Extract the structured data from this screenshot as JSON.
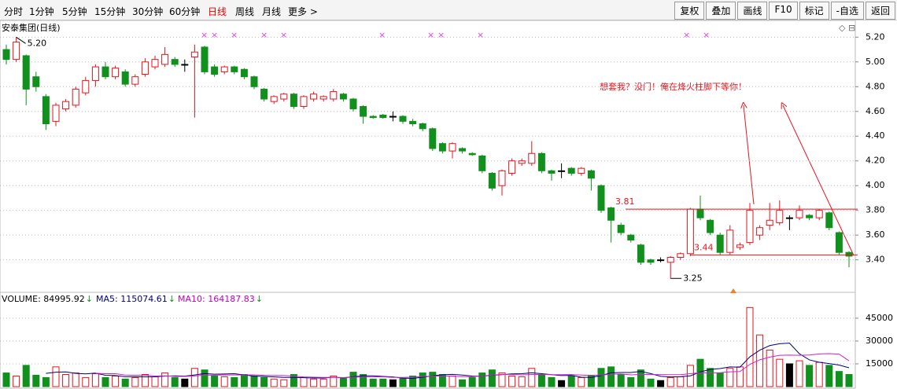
{
  "toolbar": {
    "periods": [
      "分时",
      "1分钟",
      "5分钟",
      "15分钟",
      "30分钟",
      "60分钟",
      "日线",
      "周线",
      "月线",
      "更多 >"
    ],
    "buttons": [
      "复权",
      "叠加",
      "画线",
      "F10",
      "标记",
      "-自选",
      "返回"
    ]
  },
  "chart_data": {
    "type": "candlestick",
    "title": "安泰集团(日线)",
    "open": [
      5.1,
      5.02,
      5.05,
      4.88,
      4.72,
      4.52,
      4.62,
      4.65,
      4.75,
      4.85,
      4.96,
      4.88,
      4.92,
      4.82,
      4.9,
      4.96,
      4.98,
      5.02,
      4.98,
      5.04,
      5.12,
      4.96,
      4.92,
      4.96,
      4.94,
      4.88,
      4.78,
      4.68,
      4.7,
      4.74,
      4.64,
      4.7,
      4.7,
      4.7,
      4.74,
      4.7,
      4.64,
      4.56,
      4.57,
      4.56,
      4.56,
      4.52,
      4.5,
      4.46,
      4.34,
      4.28,
      4.3,
      4.26,
      4.24,
      4.1,
      4.0,
      4.1,
      4.18,
      4.18,
      4.26,
      4.12,
      4.12,
      4.14,
      4.1,
      4.12,
      4.0,
      3.82,
      3.68,
      3.6,
      3.52,
      3.4,
      3.4,
      3.38,
      3.42,
      3.45,
      3.81,
      3.72,
      3.6,
      3.46,
      3.5,
      3.54,
      3.6,
      3.68,
      3.7,
      3.74,
      3.74,
      3.76,
      3.74,
      3.78,
      3.62,
      3.46
    ],
    "high": [
      5.14,
      5.2,
      5.06,
      4.92,
      4.74,
      4.67,
      4.7,
      4.8,
      4.88,
      4.98,
      5.0,
      4.97,
      4.94,
      4.9,
      5.03,
      5.05,
      5.12,
      5.04,
      5.02,
      5.14,
      5.13,
      4.98,
      4.97,
      4.97,
      4.95,
      4.89,
      4.79,
      4.73,
      4.75,
      4.75,
      4.73,
      4.76,
      4.73,
      4.78,
      4.75,
      4.71,
      4.65,
      4.57,
      4.58,
      4.6,
      4.57,
      4.54,
      4.51,
      4.47,
      4.35,
      4.35,
      4.31,
      4.27,
      4.25,
      4.11,
      4.13,
      4.22,
      4.22,
      4.36,
      4.27,
      4.13,
      4.18,
      4.15,
      4.15,
      4.13,
      4.01,
      3.83,
      3.7,
      3.61,
      3.53,
      3.41,
      3.42,
      3.43,
      3.46,
      3.82,
      3.92,
      3.73,
      3.62,
      3.68,
      3.54,
      3.86,
      3.68,
      3.86,
      3.88,
      3.76,
      3.84,
      3.77,
      3.81,
      3.79,
      3.63,
      3.47
    ],
    "low": [
      4.98,
      5.0,
      4.65,
      4.76,
      4.45,
      4.48,
      4.6,
      4.63,
      4.73,
      4.8,
      4.86,
      4.86,
      4.8,
      4.8,
      4.88,
      4.94,
      4.96,
      4.96,
      4.92,
      4.55,
      4.9,
      4.88,
      4.9,
      4.9,
      4.86,
      4.78,
      4.68,
      4.66,
      4.68,
      4.62,
      4.62,
      4.68,
      4.68,
      4.68,
      4.68,
      4.6,
      4.5,
      4.54,
      4.54,
      4.52,
      4.5,
      4.48,
      4.44,
      4.28,
      4.26,
      4.22,
      4.26,
      4.24,
      4.1,
      3.96,
      3.92,
      4.08,
      4.16,
      4.16,
      4.1,
      4.04,
      4.06,
      4.08,
      4.08,
      3.96,
      3.78,
      3.54,
      3.6,
      3.54,
      3.36,
      3.36,
      3.38,
      3.25,
      3.4,
      3.43,
      3.72,
      3.6,
      3.44,
      3.44,
      3.48,
      3.52,
      3.56,
      3.64,
      3.68,
      3.64,
      3.72,
      3.72,
      3.72,
      3.64,
      3.44,
      3.34
    ],
    "close": [
      5.02,
      5.16,
      4.78,
      4.8,
      4.5,
      4.65,
      4.68,
      4.78,
      4.85,
      4.96,
      4.88,
      4.95,
      4.82,
      4.88,
      5.0,
      5.02,
      5.06,
      4.98,
      4.98,
      5.08,
      4.92,
      4.9,
      4.96,
      4.92,
      4.88,
      4.8,
      4.7,
      4.72,
      4.74,
      4.64,
      4.72,
      4.74,
      4.72,
      4.76,
      4.7,
      4.62,
      4.56,
      4.55,
      4.55,
      4.56,
      4.52,
      4.5,
      4.46,
      4.3,
      4.28,
      4.34,
      4.28,
      4.25,
      4.12,
      3.98,
      4.12,
      4.2,
      4.2,
      4.26,
      4.12,
      4.1,
      4.12,
      4.1,
      4.14,
      4.06,
      3.8,
      3.72,
      3.62,
      3.56,
      3.38,
      3.38,
      3.4,
      3.42,
      3.45,
      3.81,
      3.74,
      3.62,
      3.46,
      3.64,
      3.52,
      3.8,
      3.66,
      3.72,
      3.8,
      3.74,
      3.8,
      3.74,
      3.8,
      3.66,
      3.46,
      3.43
    ],
    "volume": [
      9000,
      7000,
      14000,
      7500,
      6000,
      13000,
      8000,
      9000,
      6000,
      8500,
      6000,
      7000,
      5000,
      6000,
      8000,
      6500,
      9000,
      6000,
      5000,
      12000,
      11000,
      7000,
      6500,
      6000,
      8000,
      7000,
      6000,
      5000,
      4500,
      8000,
      6000,
      5000,
      5000,
      7000,
      6000,
      9500,
      8000,
      5000,
      5000,
      4500,
      5500,
      7000,
      9000,
      9500,
      8000,
      7000,
      4500,
      6000,
      9000,
      11000,
      9000,
      7000,
      6500,
      12000,
      8000,
      6000,
      4000,
      7000,
      6000,
      7500,
      12000,
      13000,
      8000,
      6000,
      11000,
      5000,
      4000,
      6000,
      6500,
      14000,
      18000,
      12000,
      9000,
      12000,
      13000,
      52000,
      34000,
      24000,
      18000,
      15000,
      17000,
      14000,
      16000,
      14000,
      10000,
      8000
    ],
    "ylim": [
      3.15,
      5.31
    ],
    "yticks": [
      {
        "value": 3.4,
        "label": "3.40"
      },
      {
        "value": 3.6,
        "label": "3.60"
      },
      {
        "value": 3.8,
        "label": "3.80"
      },
      {
        "value": 4.0,
        "label": "4.00"
      },
      {
        "value": 4.2,
        "label": "4.20"
      },
      {
        "value": 4.4,
        "label": "4.40"
      },
      {
        "value": 4.6,
        "label": "4.60"
      },
      {
        "value": 4.8,
        "label": "4.80"
      },
      {
        "value": 5.0,
        "label": "5.00"
      },
      {
        "value": 5.2,
        "label": "5.20"
      }
    ],
    "vlim": [
      0,
      62000
    ],
    "vticks": [
      15000,
      30000,
      45000
    ],
    "grid": true,
    "up_color": "#e8141c",
    "down_color": "#12901e",
    "indicators": [
      "VOLUME: 84995.92",
      "MA5: 115074.61",
      "MA10: 164187.83"
    ],
    "high_mark": {
      "value": 5.2,
      "label": "5.20"
    },
    "low_mark": 3.25,
    "levels": [
      3.81,
      3.44
    ],
    "annotation": "想套我？没门！俺在烽火柱脚下等你！"
  }
}
